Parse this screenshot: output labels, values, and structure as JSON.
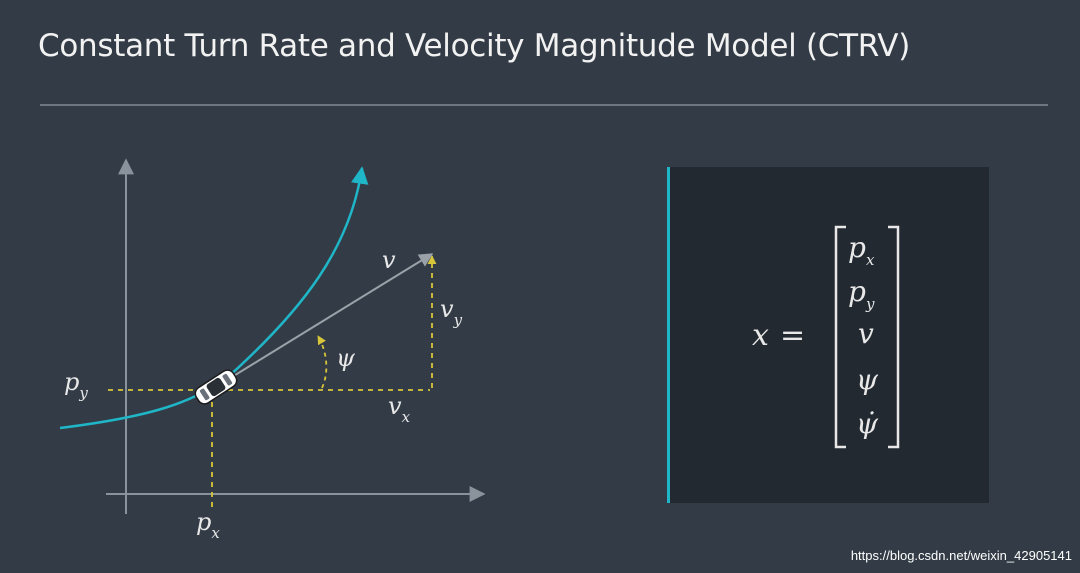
{
  "title": "Constant Turn Rate and Velocity Magnitude Model (CTRV)",
  "diagram": {
    "labels": {
      "v_main": "v",
      "v_sub_base": "v",
      "v_sub_y": "y",
      "v_sub_x": "x",
      "psi": "ψ",
      "p_base": "p",
      "p_sub_y": "y",
      "p_sub_x": "x"
    },
    "colors": {
      "curve": "#1fb6c8",
      "dashed": "#d8c63a",
      "axes": "#8a929c",
      "velocity": "#9aa1a9"
    }
  },
  "state_vector": {
    "lhs": "x",
    "equals": "=",
    "rows": [
      {
        "base": "p",
        "sub": "x"
      },
      {
        "base": "p",
        "sub": "y"
      },
      {
        "base": "v",
        "sub": ""
      },
      {
        "base": "ψ",
        "sub": ""
      },
      {
        "base": "ψ̇",
        "sub": ""
      }
    ]
  },
  "watermark": "https://blog.csdn.net/weixin_42905141"
}
